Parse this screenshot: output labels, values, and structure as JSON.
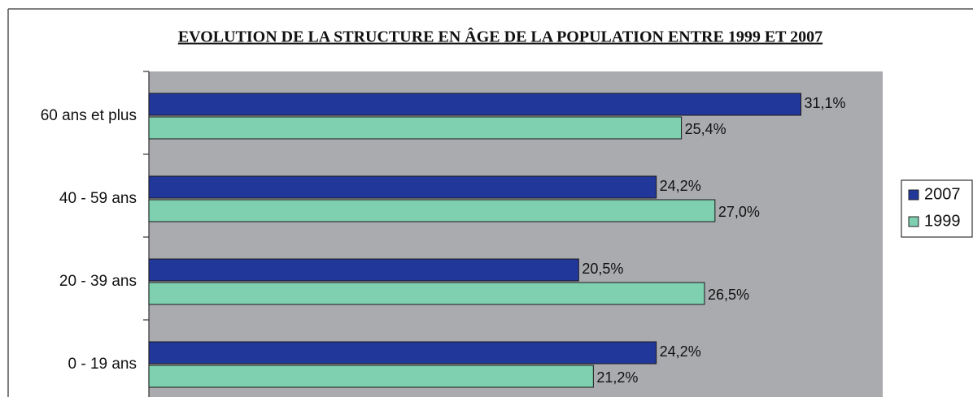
{
  "chart_data": {
    "type": "hbar",
    "title": "EVOLUTION DE LA STRUCTURE EN ÂGE DE LA POPULATION ENTRE 1999 ET 2007",
    "categories": [
      "60 ans et plus",
      "40 - 59 ans",
      "20 - 39 ans",
      "0 - 19 ans"
    ],
    "series": [
      {
        "name": "2007",
        "color": "#22379a",
        "values": [
          31.1,
          24.2,
          20.5,
          24.2
        ],
        "value_labels": [
          "31,1%",
          "24,2%",
          "20,5%",
          "24,2%"
        ]
      },
      {
        "name": "1999",
        "color": "#7fcfb1",
        "values": [
          25.4,
          27.0,
          26.5,
          21.2
        ],
        "value_labels": [
          "25,4%",
          "27,0%",
          "26,5%",
          "21,2%"
        ]
      }
    ],
    "xlim": [
      0,
      35
    ],
    "legend": "right"
  }
}
